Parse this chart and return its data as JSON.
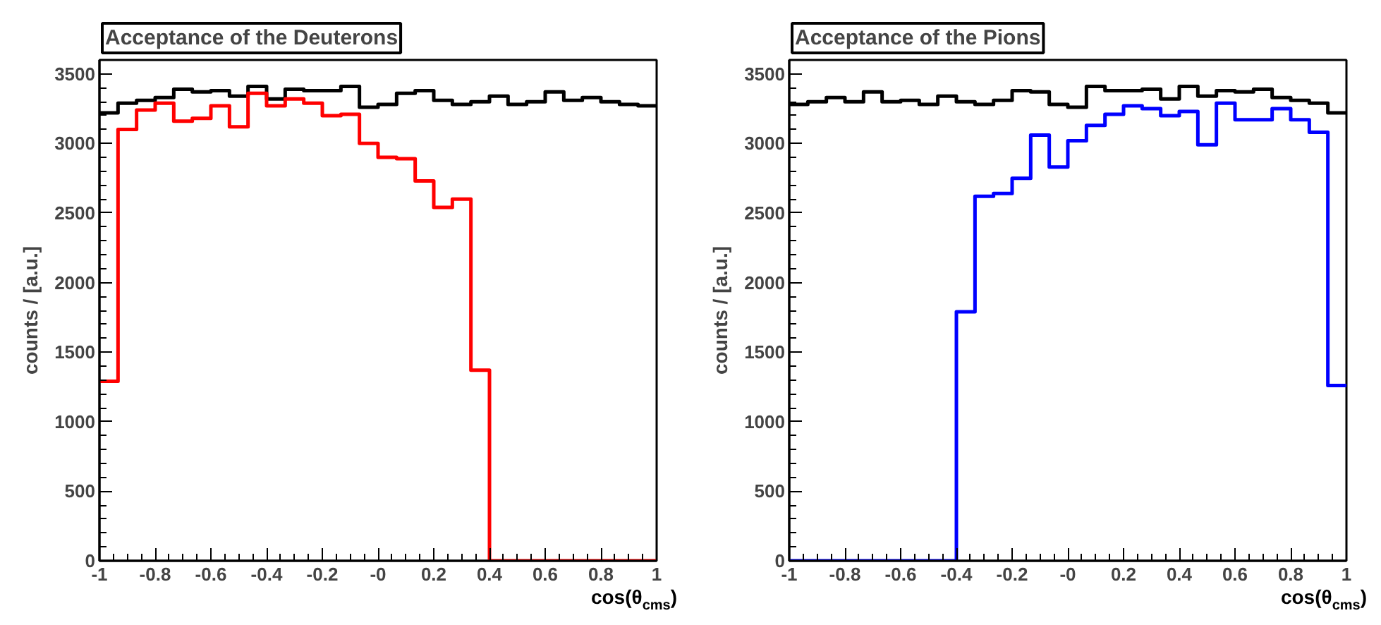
{
  "chart_data": [
    {
      "type": "histogram",
      "title": "Acceptance of the Deuterons",
      "xlabel": "cos(θ$_{cms}$)",
      "ylabel": "counts / [a.u.]",
      "bins": [
        -1,
        -0.9333,
        -0.8667,
        -0.8,
        -0.7333,
        -0.6667,
        -0.6,
        -0.5333,
        -0.4667,
        -0.4,
        -0.3333,
        -0.2667,
        -0.2,
        -0.1333,
        -0.0667,
        0,
        0.0667,
        0.1333,
        0.2,
        0.2667,
        0.3333,
        0.4,
        0.4667,
        0.5333,
        0.6,
        0.6667,
        0.7333,
        0.8,
        0.8667,
        0.9333,
        1
      ],
      "series": [
        {
          "color": "#000000",
          "values": [
            3220,
            3290,
            3310,
            3330,
            3390,
            3370,
            3380,
            3340,
            3410,
            3320,
            3390,
            3380,
            3380,
            3410,
            3260,
            3280,
            3360,
            3380,
            3310,
            3280,
            3300,
            3340,
            3280,
            3300,
            3370,
            3310,
            3330,
            3300,
            3280,
            3270
          ]
        },
        {
          "color": "#ff0000",
          "values": [
            1290,
            3100,
            3240,
            3290,
            3160,
            3180,
            3270,
            3120,
            3360,
            3270,
            3320,
            3290,
            3200,
            3210,
            3000,
            2900,
            2890,
            2730,
            2540,
            2600,
            1370,
            0,
            0,
            0,
            0,
            0,
            0,
            0,
            0,
            0
          ]
        }
      ],
      "xlim": [
        -1,
        1
      ],
      "ylim": [
        0,
        3600
      ],
      "xticks": [
        -1,
        -0.8,
        -0.6,
        -0.4,
        -0.2,
        {
          "value": 0,
          "label": "-0"
        },
        0.2,
        0.4,
        0.6,
        0.8,
        1
      ],
      "yticks": [
        0,
        500,
        1000,
        1500,
        2000,
        2500,
        3000,
        3500
      ]
    },
    {
      "type": "histogram",
      "title": "Acceptance of the Pions",
      "xlabel": "cos(θ$_{cms}$)",
      "ylabel": "counts / [a.u.]",
      "bins": [
        -1,
        -0.9333,
        -0.8667,
        -0.8,
        -0.7333,
        -0.6667,
        -0.6,
        -0.5333,
        -0.4667,
        -0.4,
        -0.3333,
        -0.2667,
        -0.2,
        -0.1333,
        -0.0667,
        0,
        0.0667,
        0.1333,
        0.2,
        0.2667,
        0.3333,
        0.4,
        0.4667,
        0.5333,
        0.6,
        0.6667,
        0.7333,
        0.8,
        0.8667,
        0.9333,
        1
      ],
      "series": [
        {
          "color": "#000000",
          "values": [
            3280,
            3300,
            3330,
            3300,
            3370,
            3300,
            3310,
            3280,
            3340,
            3300,
            3280,
            3310,
            3380,
            3370,
            3280,
            3260,
            3410,
            3380,
            3380,
            3390,
            3320,
            3410,
            3340,
            3380,
            3370,
            3390,
            3330,
            3310,
            3290,
            3220
          ]
        },
        {
          "color": "#0000ff",
          "values": [
            0,
            0,
            0,
            0,
            0,
            0,
            0,
            0,
            0,
            1790,
            2620,
            2640,
            2750,
            3060,
            2830,
            3020,
            3130,
            3210,
            3270,
            3250,
            3200,
            3230,
            2990,
            3290,
            3170,
            3170,
            3250,
            3170,
            3080,
            1260
          ]
        }
      ],
      "xlim": [
        -1,
        1
      ],
      "ylim": [
        0,
        3600
      ],
      "xticks": [
        -1,
        -0.8,
        -0.6,
        -0.4,
        -0.2,
        {
          "value": 0,
          "label": "-0"
        },
        0.2,
        0.4,
        0.6,
        0.8,
        1
      ],
      "yticks": [
        0,
        500,
        1000,
        1500,
        2000,
        2500,
        3000,
        3500
      ]
    }
  ]
}
